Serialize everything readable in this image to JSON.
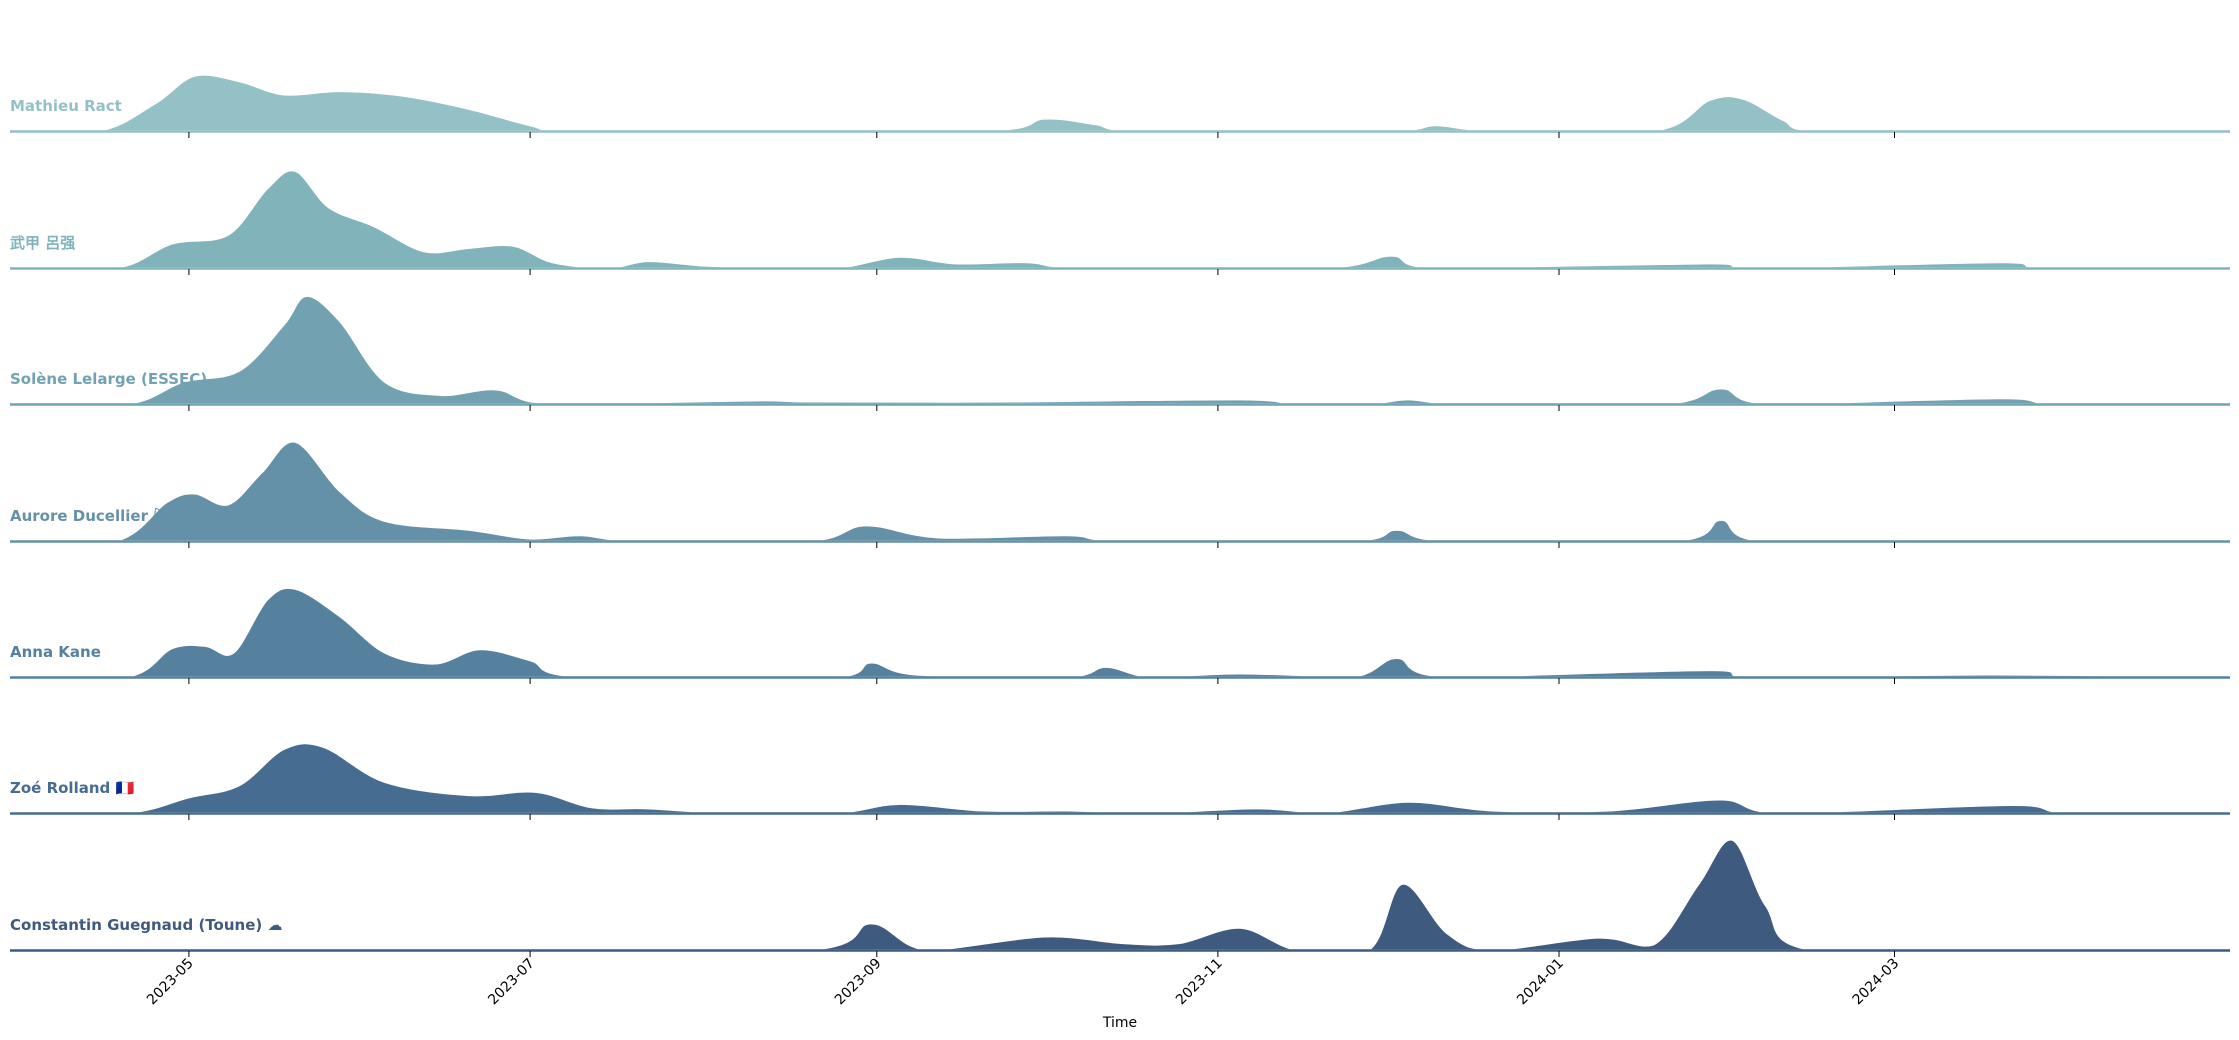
{
  "chart_data": {
    "type": "area",
    "subtype": "ridgeline-kde",
    "title": "",
    "xlabel": "Time",
    "ylabel": "",
    "x_axis": {
      "type": "date",
      "range": [
        "2023-03-30",
        "2024-04-30"
      ],
      "ticks": [
        "2023-05",
        "2023-07",
        "2023-09",
        "2023-11",
        "2024-01",
        "2024-03"
      ],
      "tick_label_rotation_deg": 45
    },
    "y_axis": {
      "visible": false,
      "range": [
        0,
        1
      ]
    },
    "grid": false,
    "legend": "none",
    "series": [
      {
        "name": "Mathieu Ract",
        "color": "#93c1c6",
        "points": [
          [
            "2023-04-15",
            0.0
          ],
          [
            "2023-04-25",
            0.25
          ],
          [
            "2023-05-02",
            0.5
          ],
          [
            "2023-05-10",
            0.45
          ],
          [
            "2023-05-18",
            0.33
          ],
          [
            "2023-05-28",
            0.36
          ],
          [
            "2023-06-08",
            0.32
          ],
          [
            "2023-06-20",
            0.2
          ],
          [
            "2023-07-01",
            0.05
          ],
          [
            "2023-07-08",
            0.0
          ],
          [
            "2023-09-20",
            0.0
          ],
          [
            "2023-10-01",
            0.11
          ],
          [
            "2023-10-10",
            0.06
          ],
          [
            "2023-10-18",
            0.0
          ],
          [
            "2023-12-01",
            0.0
          ],
          [
            "2023-12-10",
            0.05
          ],
          [
            "2023-12-20",
            0.0
          ],
          [
            "2024-01-18",
            0.0
          ],
          [
            "2024-01-28",
            0.28
          ],
          [
            "2024-02-03",
            0.29
          ],
          [
            "2024-02-10",
            0.1
          ],
          [
            "2024-02-16",
            0.0
          ]
        ]
      },
      {
        "name": "武甲 呂强",
        "color": "#81b3bb",
        "points": [
          [
            "2023-04-18",
            0.0
          ],
          [
            "2023-04-28",
            0.22
          ],
          [
            "2023-05-08",
            0.3
          ],
          [
            "2023-05-15",
            0.72
          ],
          [
            "2023-05-20",
            0.88
          ],
          [
            "2023-05-26",
            0.55
          ],
          [
            "2023-06-03",
            0.38
          ],
          [
            "2023-06-12",
            0.15
          ],
          [
            "2023-06-20",
            0.18
          ],
          [
            "2023-06-28",
            0.2
          ],
          [
            "2023-07-05",
            0.05
          ],
          [
            "2023-07-15",
            0.0
          ],
          [
            "2023-07-22",
            0.06
          ],
          [
            "2023-08-01",
            0.02
          ],
          [
            "2023-08-12",
            0.0
          ],
          [
            "2023-08-25",
            0.0
          ],
          [
            "2023-09-05",
            0.1
          ],
          [
            "2023-09-15",
            0.04
          ],
          [
            "2023-09-28",
            0.05
          ],
          [
            "2023-10-08",
            0.0
          ],
          [
            "2023-11-20",
            0.0
          ],
          [
            "2023-12-02",
            0.11
          ],
          [
            "2023-12-10",
            0.0
          ],
          [
            "2024-01-28",
            0.04
          ],
          [
            "2024-02-05",
            0.0
          ],
          [
            "2024-03-20",
            0.05
          ],
          [
            "2024-03-28",
            0.0
          ]
        ]
      },
      {
        "name": "Solène Lelarge (ESSEC)",
        "color": "#72a2b1",
        "points": [
          [
            "2023-04-20",
            0.0
          ],
          [
            "2023-04-30",
            0.2
          ],
          [
            "2023-05-10",
            0.3
          ],
          [
            "2023-05-18",
            0.72
          ],
          [
            "2023-05-22",
            0.98
          ],
          [
            "2023-05-28",
            0.75
          ],
          [
            "2023-06-05",
            0.2
          ],
          [
            "2023-06-15",
            0.08
          ],
          [
            "2023-06-25",
            0.13
          ],
          [
            "2023-07-05",
            0.0
          ],
          [
            "2023-08-10",
            0.03
          ],
          [
            "2023-08-20",
            0.02
          ],
          [
            "2023-09-25",
            0.02
          ],
          [
            "2023-11-05",
            0.04
          ],
          [
            "2023-11-15",
            0.0
          ],
          [
            "2023-11-28",
            0.0
          ],
          [
            "2023-12-05",
            0.04
          ],
          [
            "2023-12-15",
            0.0
          ],
          [
            "2024-01-20",
            0.0
          ],
          [
            "2024-01-30",
            0.14
          ],
          [
            "2024-02-08",
            0.0
          ],
          [
            "2024-03-20",
            0.05
          ],
          [
            "2024-03-30",
            0.0
          ]
        ]
      },
      {
        "name": "Aurore Ducellier 😺",
        "color": "#6491a8",
        "points": [
          [
            "2023-04-18",
            0.0
          ],
          [
            "2023-04-27",
            0.35
          ],
          [
            "2023-05-02",
            0.43
          ],
          [
            "2023-05-08",
            0.33
          ],
          [
            "2023-05-14",
            0.62
          ],
          [
            "2023-05-20",
            0.9
          ],
          [
            "2023-05-28",
            0.45
          ],
          [
            "2023-06-05",
            0.18
          ],
          [
            "2023-06-20",
            0.1
          ],
          [
            "2023-07-01",
            0.02
          ],
          [
            "2023-07-10",
            0.05
          ],
          [
            "2023-07-20",
            0.0
          ],
          [
            "2023-08-20",
            0.0
          ],
          [
            "2023-08-30",
            0.14
          ],
          [
            "2023-09-12",
            0.03
          ],
          [
            "2023-10-05",
            0.05
          ],
          [
            "2023-10-15",
            0.0
          ],
          [
            "2023-11-25",
            0.0
          ],
          [
            "2023-12-03",
            0.1
          ],
          [
            "2023-12-12",
            0.0
          ],
          [
            "2024-01-22",
            0.0
          ],
          [
            "2024-01-30",
            0.19
          ],
          [
            "2024-02-06",
            0.0
          ]
        ]
      },
      {
        "name": "Anna Kane",
        "color": "#55819f",
        "points": [
          [
            "2023-04-20",
            0.0
          ],
          [
            "2023-04-28",
            0.26
          ],
          [
            "2023-05-04",
            0.28
          ],
          [
            "2023-05-09",
            0.22
          ],
          [
            "2023-05-15",
            0.7
          ],
          [
            "2023-05-20",
            0.8
          ],
          [
            "2023-05-28",
            0.55
          ],
          [
            "2023-06-05",
            0.22
          ],
          [
            "2023-06-14",
            0.12
          ],
          [
            "2023-06-22",
            0.25
          ],
          [
            "2023-07-01",
            0.15
          ],
          [
            "2023-07-10",
            0.0
          ],
          [
            "2023-08-25",
            0.0
          ],
          [
            "2023-08-31",
            0.13
          ],
          [
            "2023-09-08",
            0.02
          ],
          [
            "2023-10-05",
            0.0
          ],
          [
            "2023-10-12",
            0.09
          ],
          [
            "2023-10-20",
            0.0
          ],
          [
            "2023-11-05",
            0.03
          ],
          [
            "2023-11-25",
            0.0
          ],
          [
            "2023-12-03",
            0.17
          ],
          [
            "2023-12-12",
            0.0
          ],
          [
            "2024-01-28",
            0.06
          ],
          [
            "2024-02-05",
            0.0
          ],
          [
            "2024-03-18",
            0.02
          ]
        ]
      },
      {
        "name": "Zoé Rolland 🇫🇷",
        "color": "#476c92",
        "points": [
          [
            "2023-04-20",
            0.0
          ],
          [
            "2023-05-01",
            0.14
          ],
          [
            "2023-05-10",
            0.25
          ],
          [
            "2023-05-18",
            0.58
          ],
          [
            "2023-05-25",
            0.6
          ],
          [
            "2023-06-05",
            0.28
          ],
          [
            "2023-06-20",
            0.16
          ],
          [
            "2023-07-02",
            0.19
          ],
          [
            "2023-07-12",
            0.05
          ],
          [
            "2023-07-22",
            0.04
          ],
          [
            "2023-08-05",
            0.0
          ],
          [
            "2023-08-25",
            0.0
          ],
          [
            "2023-09-05",
            0.08
          ],
          [
            "2023-09-20",
            0.02
          ],
          [
            "2023-10-05",
            0.02
          ],
          [
            "2023-10-20",
            0.0
          ],
          [
            "2023-11-08",
            0.04
          ],
          [
            "2023-11-20",
            0.0
          ],
          [
            "2023-12-05",
            0.1
          ],
          [
            "2023-12-20",
            0.02
          ],
          [
            "2024-01-10",
            0.02
          ],
          [
            "2024-01-30",
            0.12
          ],
          [
            "2024-02-10",
            0.0
          ],
          [
            "2024-03-22",
            0.07
          ],
          [
            "2024-04-01",
            0.0
          ]
        ]
      },
      {
        "name": "Constantin Guegnaud (Toune) ☁",
        "color": "#3e5a7e",
        "points": [
          [
            "2023-08-20",
            0.0
          ],
          [
            "2023-08-31",
            0.24
          ],
          [
            "2023-09-10",
            0.0
          ],
          [
            "2023-10-01",
            0.12
          ],
          [
            "2023-10-15",
            0.06
          ],
          [
            "2023-10-25",
            0.06
          ],
          [
            "2023-11-05",
            0.2
          ],
          [
            "2023-11-15",
            0.0
          ],
          [
            "2023-11-28",
            0.0
          ],
          [
            "2023-12-04",
            0.6
          ],
          [
            "2023-12-12",
            0.15
          ],
          [
            "2023-12-20",
            0.0
          ],
          [
            "2024-01-08",
            0.11
          ],
          [
            "2024-01-18",
            0.05
          ],
          [
            "2024-01-26",
            0.6
          ],
          [
            "2024-02-01",
            1.0
          ],
          [
            "2024-02-07",
            0.4
          ],
          [
            "2024-02-15",
            0.0
          ]
        ]
      }
    ]
  }
}
